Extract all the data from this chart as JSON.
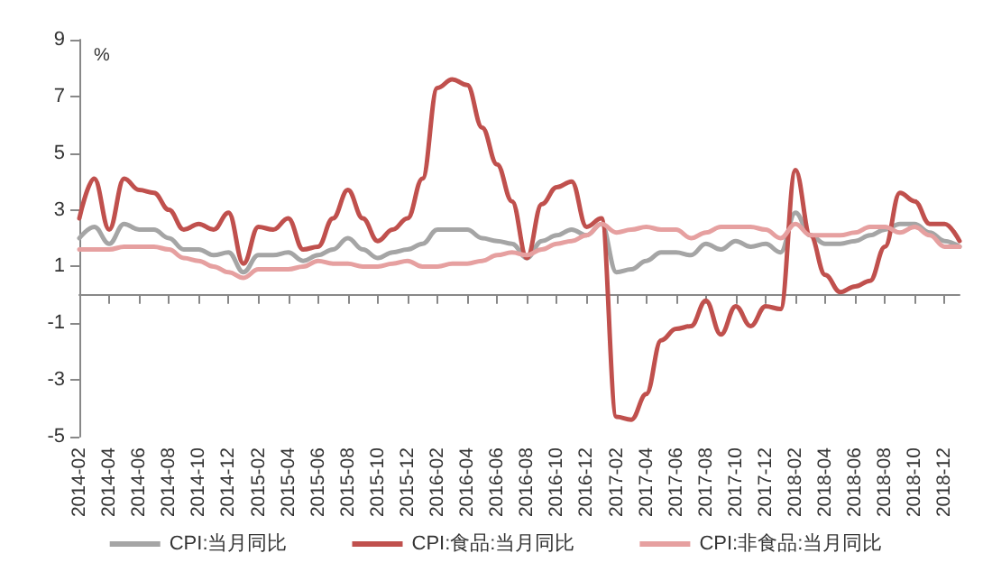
{
  "chart_data": {
    "type": "line",
    "ylabel": "%",
    "categories": [
      "2014-02",
      null,
      "2014-04",
      null,
      "2014-06",
      null,
      "2014-08",
      null,
      "2014-10",
      null,
      "2014-12",
      null,
      "2015-02",
      null,
      "2015-04",
      null,
      "2015-06",
      null,
      "2015-08",
      null,
      "2015-10",
      null,
      "2015-12",
      null,
      "2016-02",
      null,
      "2016-04",
      null,
      "2016-06",
      null,
      "2016-08",
      null,
      "2016-10",
      null,
      "2016-12",
      null,
      "2017-02",
      null,
      "2017-04",
      null,
      "2017-06",
      null,
      "2017-08",
      null,
      "2017-10",
      null,
      "2017-12",
      null,
      "2018-02",
      null,
      "2018-04",
      null,
      "2018-06",
      null,
      "2018-08",
      null,
      "2018-10",
      null,
      "2018-12",
      null
    ],
    "series": [
      {
        "name": "CPI:当月同比",
        "color": "#a5a5a5",
        "values": [
          2.0,
          2.4,
          1.8,
          2.5,
          2.3,
          2.3,
          2.0,
          1.6,
          1.6,
          1.4,
          1.5,
          0.8,
          1.4,
          1.4,
          1.5,
          1.2,
          1.4,
          1.6,
          2.0,
          1.6,
          1.3,
          1.5,
          1.6,
          1.8,
          2.3,
          2.3,
          2.3,
          2.0,
          1.9,
          1.8,
          1.3,
          1.9,
          2.1,
          2.3,
          2.1,
          2.5,
          0.8,
          0.9,
          1.2,
          1.5,
          1.5,
          1.4,
          1.8,
          1.6,
          1.9,
          1.7,
          1.8,
          1.5,
          2.9,
          2.1,
          1.8,
          1.8,
          1.9,
          2.1,
          2.3,
          2.5,
          2.5,
          2.2,
          1.9,
          1.7
        ]
      },
      {
        "name": "CPI:食品:当月同比",
        "color": "#c0504d",
        "values": [
          2.7,
          4.1,
          2.3,
          4.1,
          3.7,
          3.6,
          3.0,
          2.3,
          2.5,
          2.3,
          2.9,
          1.1,
          2.4,
          2.3,
          2.7,
          1.6,
          1.7,
          2.7,
          3.7,
          2.7,
          1.9,
          2.3,
          2.7,
          4.1,
          7.3,
          7.6,
          7.4,
          5.9,
          4.6,
          3.3,
          1.3,
          3.2,
          3.8,
          4.0,
          2.4,
          2.7,
          -4.3,
          -4.4,
          -3.5,
          -1.6,
          -1.2,
          -1.1,
          -0.2,
          -1.4,
          -0.4,
          -1.1,
          -0.4,
          -0.5,
          4.4,
          2.1,
          0.7,
          0.1,
          0.3,
          0.5,
          1.7,
          3.6,
          3.3,
          2.5,
          2.5,
          1.9
        ]
      },
      {
        "name": "CPI:非食品:当月同比",
        "color": "#e6a0a0",
        "values": [
          1.6,
          1.6,
          1.6,
          1.7,
          1.7,
          1.7,
          1.6,
          1.3,
          1.2,
          1.0,
          0.8,
          0.6,
          0.9,
          0.9,
          0.9,
          1.0,
          1.2,
          1.1,
          1.1,
          1.0,
          1.0,
          1.1,
          1.2,
          1.0,
          1.0,
          1.1,
          1.1,
          1.2,
          1.4,
          1.5,
          1.4,
          1.6,
          1.8,
          1.9,
          2.1,
          2.5,
          2.2,
          2.3,
          2.4,
          2.3,
          2.3,
          2.0,
          2.2,
          2.4,
          2.4,
          2.4,
          2.3,
          2.0,
          2.5,
          2.1,
          2.1,
          2.1,
          2.2,
          2.4,
          2.4,
          2.2,
          2.4,
          2.1,
          1.7,
          1.7
        ]
      }
    ],
    "ylim": [
      -5,
      9
    ],
    "yticks": [
      -5,
      -3,
      -1,
      1,
      3,
      5,
      7,
      9
    ],
    "grid": false,
    "legend": "bottom",
    "marker": "none",
    "line_style": "solid"
  }
}
